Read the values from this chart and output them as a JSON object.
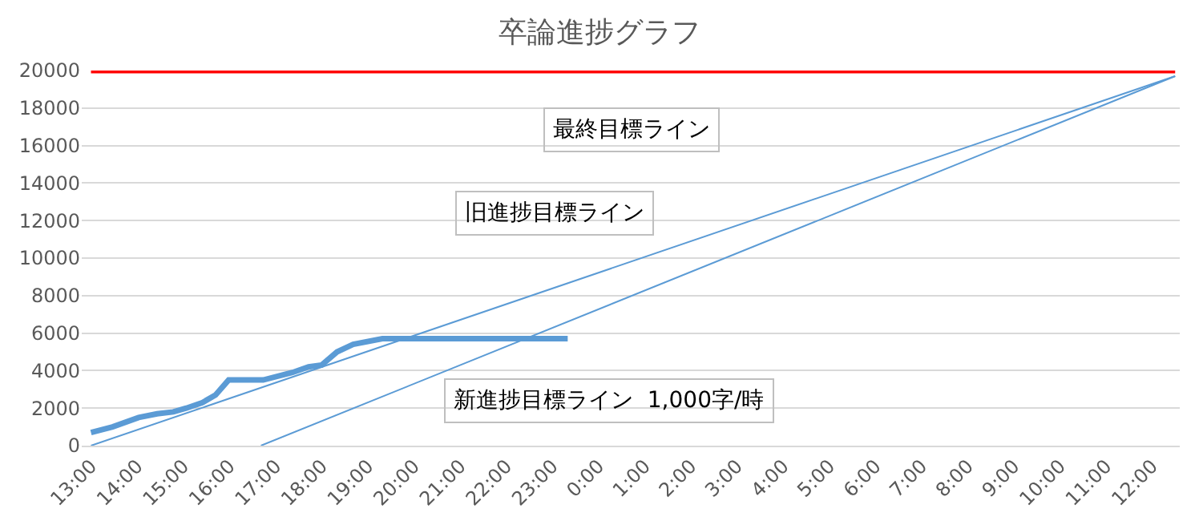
{
  "chart_data": {
    "type": "line",
    "title": "卒論進捗グラフ",
    "series": [
      {
        "color": "#5b9bd5",
        "x": [
          "--01-01T13:00",
          "--01-01T13:28",
          "--01-01T14:02",
          "--01-01T14:26",
          "--01-01T14:47",
          "--01-01T15:04",
          "--01-01T15:25",
          "--01-01T15:42",
          "--01-01T15:59",
          "--01-01T16:44",
          "--01-01T17:22",
          "--01-01T17:43",
          "--01-01T18:00",
          "--01-01T18:20",
          "--01-01T18:41",
          "--01-01T19:19",
          "--01-01T23:20"
        ],
        "values": [
          700,
          1000,
          1500,
          1700,
          1800,
          2000,
          2300,
          2700,
          3500,
          3500,
          3900,
          4200,
          4300,
          5000,
          5400,
          5700,
          5700
        ]
      },
      {
        "color": "#ff0000",
        "x": [
          "--01-01T13:00",
          "--01-02T12:30"
        ],
        "values": [
          20000,
          20000
        ]
      },
      {
        "color": "#5b9bd5",
        "x": [
          "--01-01T13:00",
          "--01-02T12:30"
        ],
        "values": [
          0,
          19700
        ]
      },
      {
        "color": "#5b9bd5",
        "x": [
          "--01-01T16:41",
          "--01-02T12:30"
        ],
        "values": [
          0,
          19700
        ]
      }
    ],
    "annotations": [
      "最終目標ライン",
      "旧進捗目標ライン",
      "新進捗目標ライン  1,000字/時"
    ],
    "xlim": [
      "--01-01T12:48",
      "--01-02T12:36"
    ],
    "xticks": [
      {
        "value": "--01-01T13:00",
        "label": "13:00"
      },
      {
        "value": "--01-01T14:00",
        "label": "14:00"
      },
      {
        "value": "--01-01T15:00",
        "label": "15:00"
      },
      {
        "value": "--01-01T16:00",
        "label": "16:00"
      },
      {
        "value": "--01-01T17:00",
        "label": "17:00"
      },
      {
        "value": "--01-01T18:00",
        "label": "18:00"
      },
      {
        "value": "--01-01T19:00",
        "label": "19:00"
      },
      {
        "value": "--01-01T20:00",
        "label": "20:00"
      },
      {
        "value": "--01-01T21:00",
        "label": "21:00"
      },
      {
        "value": "--01-01T22:00",
        "label": "22:00"
      },
      {
        "value": "--01-01T23:00",
        "label": "23:00"
      },
      {
        "value": "--01-02T00:00",
        "label": "0:00"
      },
      {
        "value": "--01-02T01:00",
        "label": "1:00"
      },
      {
        "value": "--01-02T02:00",
        "label": "2:00"
      },
      {
        "value": "--01-02T03:00",
        "label": "3:00"
      },
      {
        "value": "--01-02T04:00",
        "label": "4:00"
      },
      {
        "value": "--01-02T05:00",
        "label": "5:00"
      },
      {
        "value": "--01-02T06:00",
        "label": "6:00"
      },
      {
        "value": "--01-02T07:00",
        "label": "7:00"
      },
      {
        "value": "--01-02T08:00",
        "label": "8:00"
      },
      {
        "value": "--01-02T09:00",
        "label": "9:00"
      },
      {
        "value": "--01-02T10:00",
        "label": "10:00"
      },
      {
        "value": "--01-02T11:00",
        "label": "11:00"
      },
      {
        "value": "--01-02T12:00",
        "label": "12:00"
      }
    ],
    "ylim": [
      0,
      20000
    ],
    "yticks": [
      0,
      2000,
      4000,
      6000,
      8000,
      10000,
      12000,
      14000,
      16000,
      18000,
      20000
    ],
    "grid": "y",
    "marker": "none",
    "line_style": "solid"
  }
}
